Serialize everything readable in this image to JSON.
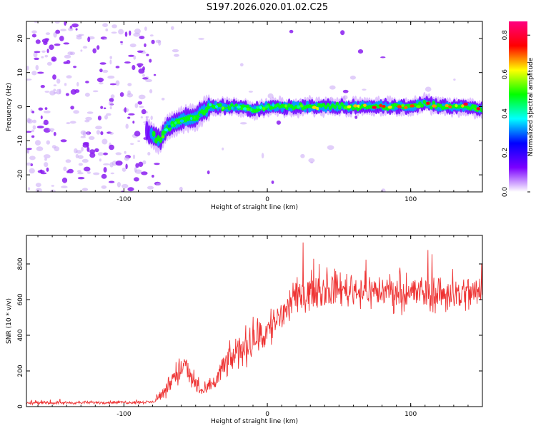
{
  "title": "S197.2026.020.01.02.C25",
  "chart_data": [
    {
      "type": "heatmap",
      "name": "spectrogram",
      "xlabel": "Height of straight line (km)",
      "ylabel": "Frequency (Hz)",
      "xlim": [
        -168,
        150
      ],
      "ylim": [
        -25,
        25
      ],
      "xticks": [
        -100,
        0,
        100
      ],
      "yticks": [
        -20,
        -10,
        0,
        10,
        20
      ],
      "colorbar": {
        "label": "Normalized spectral amplitude",
        "range": [
          0.0,
          0.87
        ],
        "ticks": [
          "0.0",
          "0.2",
          "0.4",
          "0.6",
          "0.8"
        ],
        "colors": [
          "#ffffff",
          "#7b00ff",
          "#0000ff",
          "#00ffff",
          "#00ff00",
          "#ffff00",
          "#ff0000",
          "#ff0080"
        ]
      },
      "trace": {
        "description": "dominant frequency track",
        "x": [
          -84,
          -75,
          -70,
          -60,
          -50,
          -40,
          -30,
          -20,
          -10,
          0,
          20,
          40,
          60,
          80,
          100,
          110,
          120,
          140,
          150
        ],
        "y": [
          -7,
          -10,
          -6,
          -4,
          -3,
          0,
          0,
          0,
          -1,
          0,
          0,
          0,
          0,
          0,
          0,
          1,
          0,
          0,
          -1
        ]
      }
    },
    {
      "type": "line",
      "name": "snr",
      "xlabel": "Height of straight line (km)",
      "ylabel": "SNR (10 * v/v)",
      "xlim": [
        -168,
        150
      ],
      "ylim": [
        0,
        960
      ],
      "xticks": [
        -100,
        0,
        100
      ],
      "yticks": [
        0,
        200,
        400,
        600,
        800
      ],
      "color": "#ee3333",
      "envelope": {
        "x": [
          -168,
          -80,
          -72,
          -65,
          -58,
          -52,
          -45,
          -38,
          -30,
          -20,
          -10,
          0,
          10,
          20,
          25,
          35,
          50,
          70,
          100,
          130,
          150
        ],
        "median": [
          20,
          25,
          80,
          180,
          220,
          150,
          80,
          120,
          230,
          310,
          370,
          420,
          520,
          600,
          640,
          650,
          660,
          650,
          640,
          630,
          640
        ],
        "spread": [
          12,
          15,
          60,
          120,
          140,
          110,
          50,
          90,
          120,
          160,
          170,
          180,
          190,
          170,
          160,
          150,
          150,
          150,
          160,
          170,
          160
        ]
      }
    }
  ]
}
